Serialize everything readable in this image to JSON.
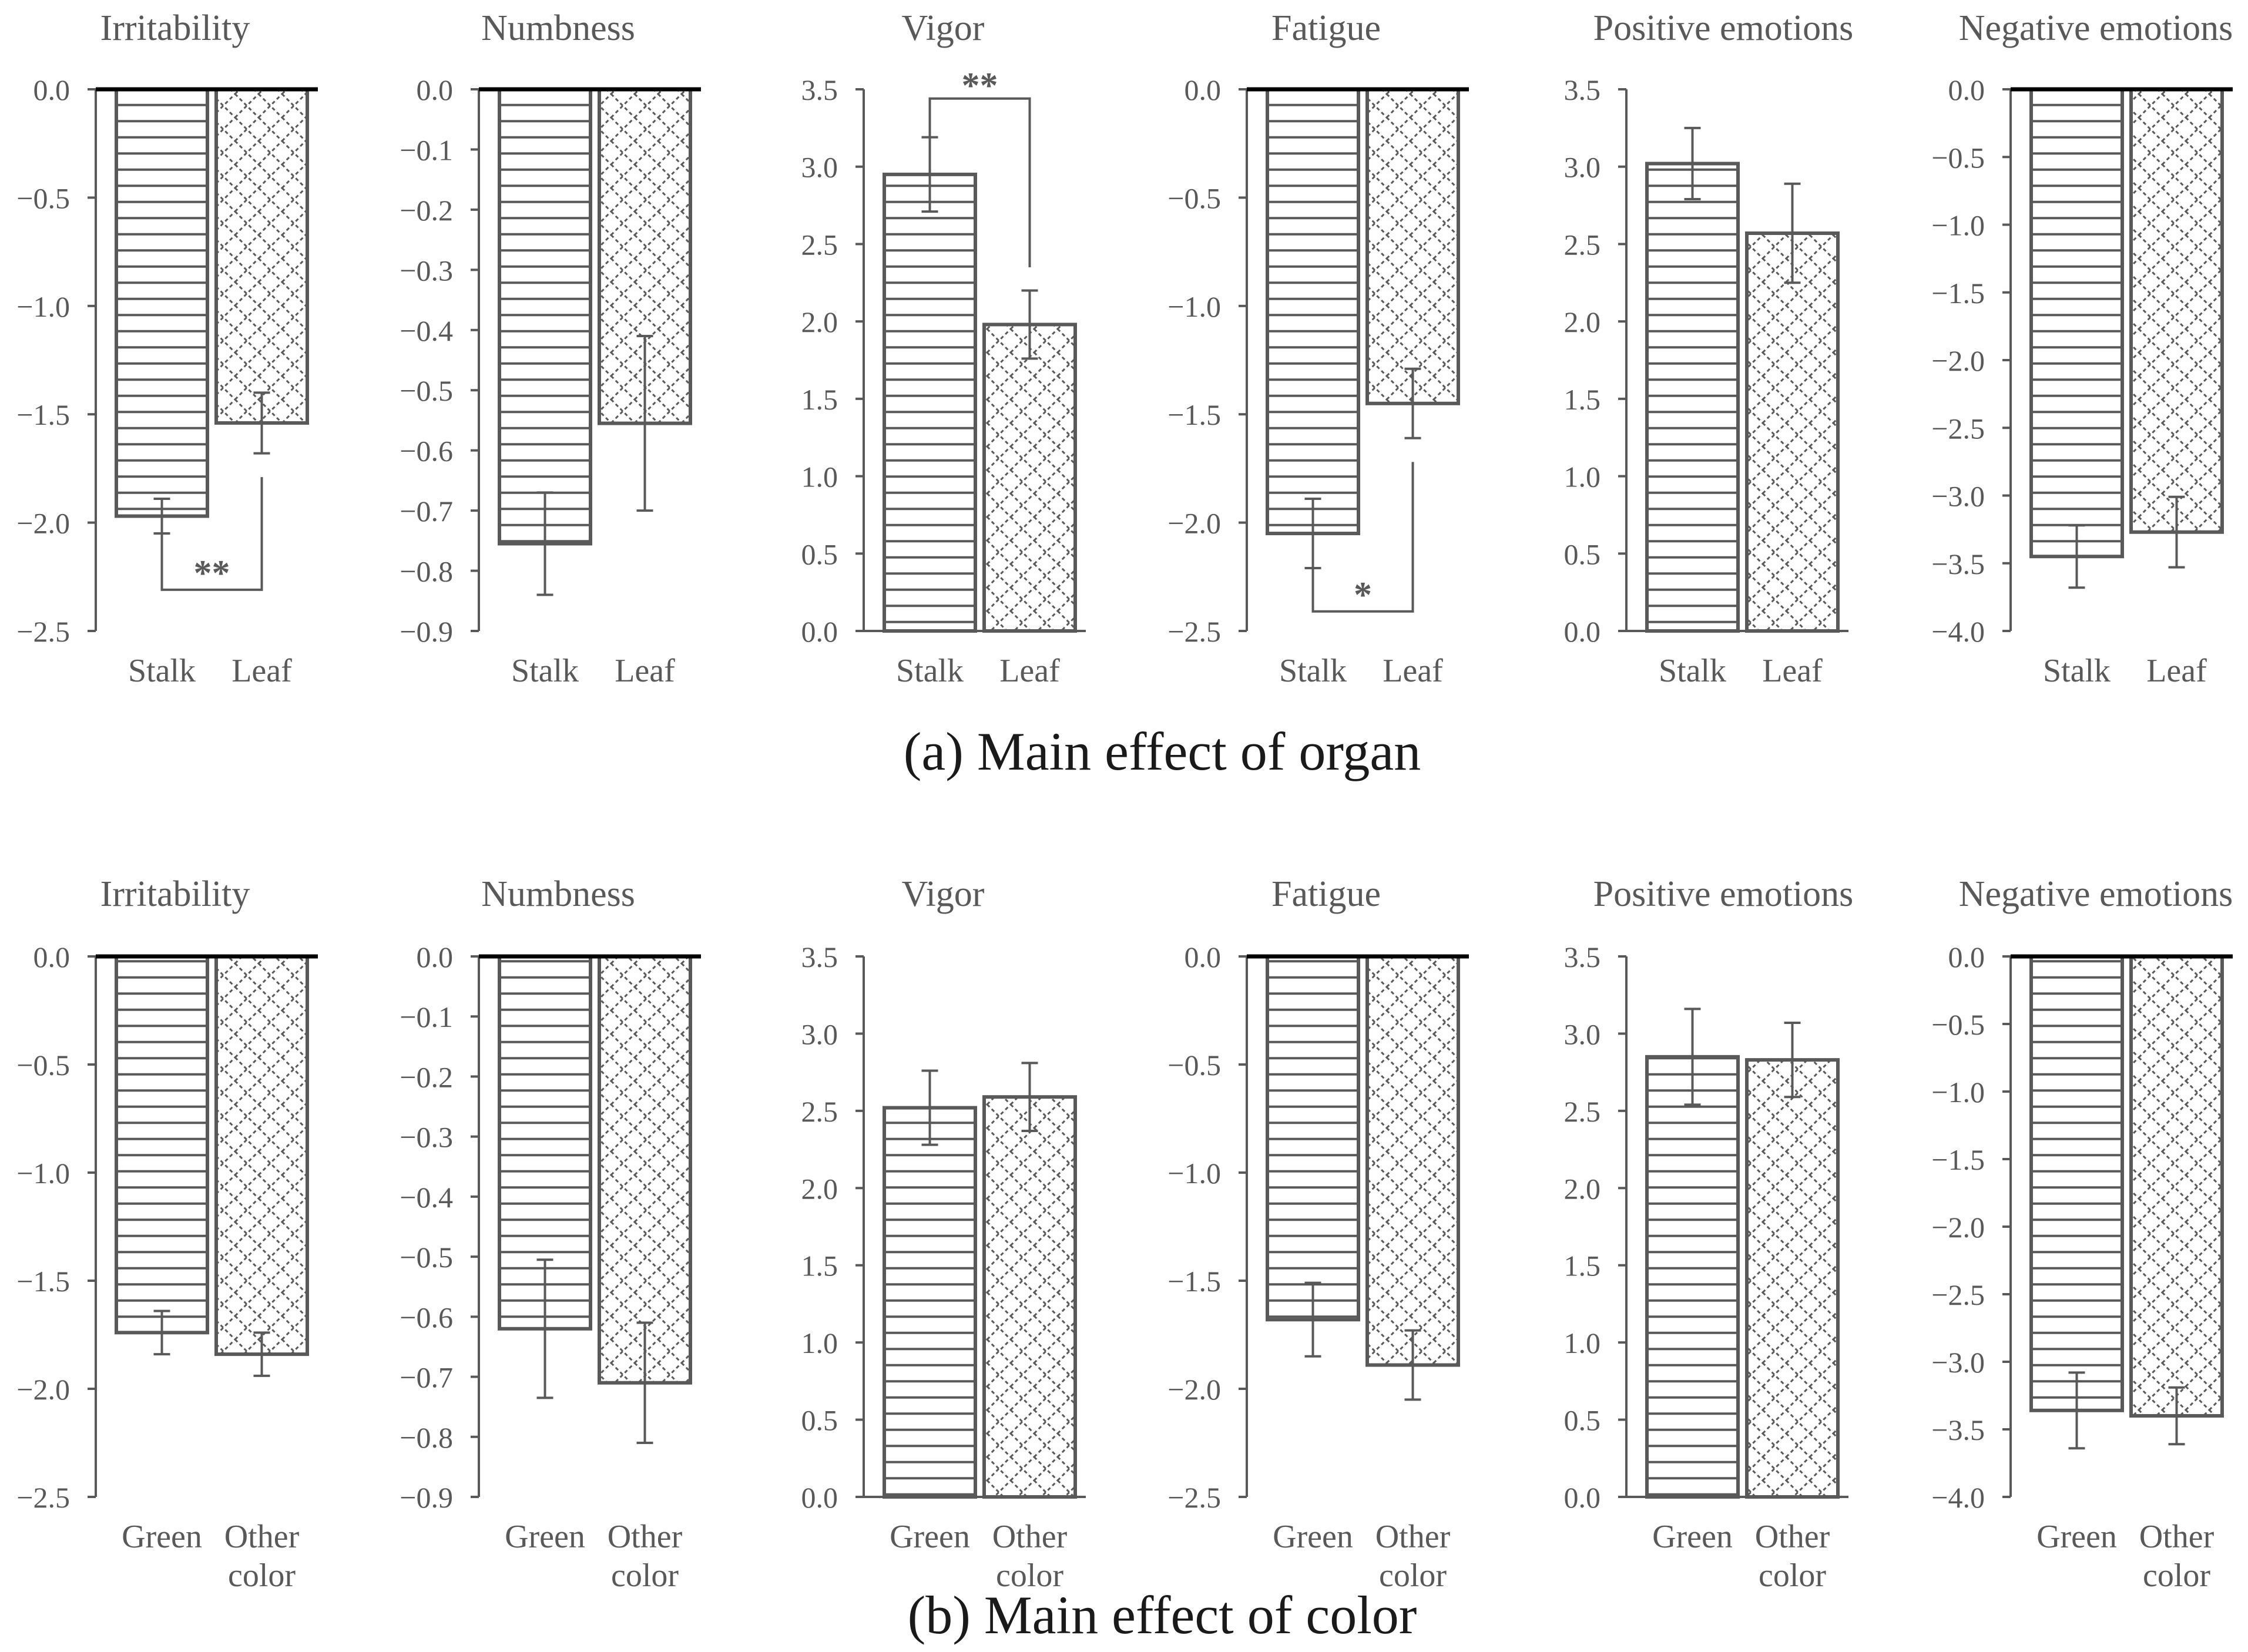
{
  "figure": {
    "caption_a": "(a) Main effect of organ",
    "caption_b": "(b) Main effect of color"
  },
  "colors": {
    "bar_stroke": "#595959",
    "text": "#595959",
    "axis": "#000000",
    "background": "#ffffff"
  },
  "chart_data": [
    {
      "panel": "a",
      "type": "bar",
      "title": "Irritability",
      "categories": [
        "Stalk",
        "Leaf"
      ],
      "values": [
        -1.97,
        -1.54
      ],
      "errors": [
        0.08,
        0.14
      ],
      "ylim": [
        -2.5,
        0.0
      ],
      "ticks": [
        "0.0",
        "−0.5",
        "−1.0",
        "−1.5",
        "−2.0",
        "−2.5"
      ],
      "patterns": [
        "horizontal-lines",
        "crosshatch"
      ],
      "significance": {
        "label": "**",
        "style": "below",
        "y": [
          -2.05,
          -1.79,
          -2.31
        ]
      }
    },
    {
      "panel": "a",
      "type": "bar",
      "title": "Numbness",
      "categories": [
        "Stalk",
        "Leaf"
      ],
      "values": [
        -0.755,
        -0.555
      ],
      "errors": [
        0.085,
        0.145
      ],
      "ylim": [
        -0.9,
        0.0
      ],
      "ticks": [
        "0.0",
        "−0.1",
        "−0.2",
        "−0.3",
        "−0.4",
        "−0.5",
        "−0.6",
        "−0.7",
        "−0.8",
        "−0.9"
      ],
      "patterns": [
        "horizontal-lines",
        "crosshatch"
      ]
    },
    {
      "panel": "a",
      "type": "bar",
      "title": "Vigor",
      "categories": [
        "Stalk",
        "Leaf"
      ],
      "values": [
        2.95,
        1.98
      ],
      "errors": [
        0.24,
        0.22
      ],
      "ylim": [
        0.0,
        3.5
      ],
      "ticks": [
        "3.5",
        "3.0",
        "2.5",
        "2.0",
        "1.5",
        "1.0",
        "0.5",
        "0.0"
      ],
      "patterns": [
        "horizontal-lines",
        "crosshatch"
      ],
      "significance": {
        "label": "**",
        "style": "above",
        "y": [
          3.19,
          2.35,
          3.44
        ]
      }
    },
    {
      "panel": "a",
      "type": "bar",
      "title": "Fatigue",
      "categories": [
        "Stalk",
        "Leaf"
      ],
      "values": [
        -2.05,
        -1.45
      ],
      "errors": [
        0.16,
        0.16
      ],
      "ylim": [
        -2.5,
        0.0
      ],
      "ticks": [
        "0.0",
        "−0.5",
        "−1.0",
        "−1.5",
        "−2.0",
        "−2.5"
      ],
      "patterns": [
        "horizontal-lines",
        "crosshatch"
      ],
      "significance": {
        "label": "*",
        "style": "below",
        "y": [
          -2.21,
          -1.72,
          -2.41
        ]
      }
    },
    {
      "panel": "a",
      "type": "bar",
      "title": "Positive emotions",
      "categories": [
        "Stalk",
        "Leaf"
      ],
      "values": [
        3.02,
        2.57
      ],
      "errors": [
        0.23,
        0.32
      ],
      "ylim": [
        0.0,
        3.5
      ],
      "ticks": [
        "3.5",
        "3.0",
        "2.5",
        "2.0",
        "1.5",
        "1.0",
        "0.5",
        "0.0"
      ],
      "patterns": [
        "horizontal-lines",
        "crosshatch"
      ]
    },
    {
      "panel": "a",
      "type": "bar",
      "title": "Negative emotions",
      "categories": [
        "Stalk",
        "Leaf"
      ],
      "values": [
        -3.45,
        -3.27
      ],
      "errors": [
        0.23,
        0.26
      ],
      "ylim": [
        -4.0,
        0.0
      ],
      "ticks": [
        "0.0",
        "−0.5",
        "−1.0",
        "−1.5",
        "−2.0",
        "−2.5",
        "−3.0",
        "−3.5",
        "−4.0"
      ],
      "patterns": [
        "horizontal-lines",
        "crosshatch"
      ]
    },
    {
      "panel": "b",
      "type": "bar",
      "title": "Irritability",
      "categories": [
        "Green",
        "Other color"
      ],
      "values": [
        -1.74,
        -1.84
      ],
      "errors": [
        0.1,
        0.1
      ],
      "ylim": [
        -2.5,
        0.0
      ],
      "ticks": [
        "0.0",
        "−0.5",
        "−1.0",
        "−1.5",
        "−2.0",
        "−2.5"
      ],
      "patterns": [
        "horizontal-lines",
        "crosshatch"
      ]
    },
    {
      "panel": "b",
      "type": "bar",
      "title": "Numbness",
      "categories": [
        "Green",
        "Other color"
      ],
      "values": [
        -0.62,
        -0.71
      ],
      "errors": [
        0.115,
        0.1
      ],
      "ylim": [
        -0.9,
        0.0
      ],
      "ticks": [
        "0.0",
        "−0.1",
        "−0.2",
        "−0.3",
        "−0.4",
        "−0.5",
        "−0.6",
        "−0.7",
        "−0.8",
        "−0.9"
      ],
      "patterns": [
        "horizontal-lines",
        "crosshatch"
      ]
    },
    {
      "panel": "b",
      "type": "bar",
      "title": "Vigor",
      "categories": [
        "Green",
        "Other color"
      ],
      "values": [
        2.52,
        2.59
      ],
      "errors": [
        0.24,
        0.22
      ],
      "ylim": [
        0.0,
        3.5
      ],
      "ticks": [
        "3.5",
        "3.0",
        "2.5",
        "2.0",
        "1.5",
        "1.0",
        "0.5",
        "0.0"
      ],
      "patterns": [
        "horizontal-lines",
        "crosshatch"
      ]
    },
    {
      "panel": "b",
      "type": "bar",
      "title": "Fatigue",
      "categories": [
        "Green",
        "Other color"
      ],
      "values": [
        -1.68,
        -1.89
      ],
      "errors": [
        0.17,
        0.16
      ],
      "ylim": [
        -2.5,
        0.0
      ],
      "ticks": [
        "0.0",
        "−0.5",
        "−1.0",
        "−1.5",
        "−2.0",
        "−2.5"
      ],
      "patterns": [
        "horizontal-lines",
        "crosshatch"
      ]
    },
    {
      "panel": "b",
      "type": "bar",
      "title": "Positive emotions",
      "categories": [
        "Green",
        "Other color"
      ],
      "values": [
        2.85,
        2.83
      ],
      "errors": [
        0.31,
        0.24
      ],
      "ylim": [
        0.0,
        3.5
      ],
      "ticks": [
        "3.5",
        "3.0",
        "2.5",
        "2.0",
        "1.5",
        "1.0",
        "0.5",
        "0.0"
      ],
      "patterns": [
        "horizontal-lines",
        "crosshatch"
      ]
    },
    {
      "panel": "b",
      "type": "bar",
      "title": "Negative emotions",
      "categories": [
        "Green",
        "Other color"
      ],
      "values": [
        -3.36,
        -3.4
      ],
      "errors": [
        0.28,
        0.21
      ],
      "ylim": [
        -4.0,
        0.0
      ],
      "ticks": [
        "0.0",
        "−0.5",
        "−1.0",
        "−1.5",
        "−2.0",
        "−2.5",
        "−3.0",
        "−3.5",
        "−4.0"
      ],
      "patterns": [
        "horizontal-lines",
        "crosshatch"
      ]
    }
  ]
}
